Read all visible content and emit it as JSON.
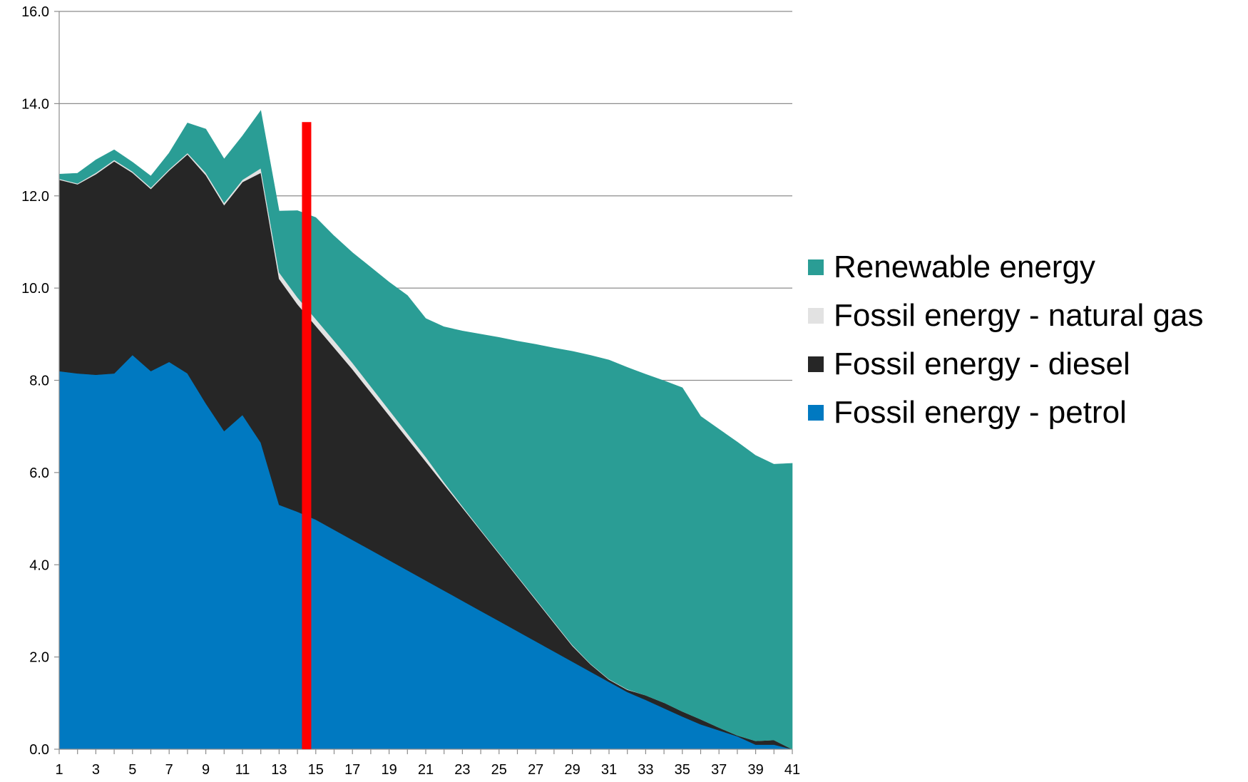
{
  "chart_data": {
    "type": "area",
    "stacked": true,
    "x": [
      1,
      2,
      3,
      4,
      5,
      6,
      7,
      8,
      9,
      10,
      11,
      12,
      13,
      14,
      15,
      16,
      17,
      18,
      19,
      20,
      21,
      22,
      23,
      24,
      25,
      26,
      27,
      28,
      29,
      30,
      31,
      32,
      33,
      34,
      35,
      36,
      37,
      38,
      39,
      40,
      41
    ],
    "x_tick_labels": [
      "1",
      "3",
      "5",
      "7",
      "9",
      "11",
      "13",
      "15",
      "17",
      "19",
      "21",
      "23",
      "25",
      "27",
      "29",
      "31",
      "33",
      "35",
      "37",
      "39",
      "41"
    ],
    "y_tick_labels": [
      "0.0",
      "2.0",
      "4.0",
      "6.0",
      "8.0",
      "10.0",
      "12.0",
      "14.0",
      "16.0"
    ],
    "ylim": [
      0,
      16
    ],
    "grid": "horizontal",
    "legend_position": "right",
    "series": [
      {
        "name": "Fossil energy  - petrol",
        "color": "#0079C1",
        "values": [
          8.2,
          8.15,
          8.12,
          8.15,
          8.55,
          8.2,
          8.4,
          8.15,
          7.5,
          6.9,
          7.25,
          6.65,
          5.3,
          5.15,
          4.98,
          4.76,
          4.54,
          4.32,
          4.1,
          3.88,
          3.66,
          3.44,
          3.22,
          3.0,
          2.78,
          2.56,
          2.34,
          2.12,
          1.9,
          1.68,
          1.46,
          1.24,
          1.07,
          0.89,
          0.71,
          0.54,
          0.41,
          0.28,
          0.1,
          0.1,
          0.0
        ]
      },
      {
        "name": "Fossil energy - diesel",
        "color": "#262626",
        "values": [
          4.15,
          4.1,
          4.35,
          4.6,
          3.95,
          3.95,
          4.15,
          4.75,
          4.95,
          4.9,
          5.05,
          5.85,
          4.9,
          4.5,
          4.2,
          3.95,
          3.7,
          3.42,
          3.14,
          2.86,
          2.58,
          2.3,
          2.02,
          1.74,
          1.46,
          1.18,
          0.9,
          0.62,
          0.34,
          0.16,
          0.05,
          0.05,
          0.1,
          0.12,
          0.11,
          0.11,
          0.06,
          0.02,
          0.08,
          0.1,
          0.0
        ]
      },
      {
        "name": "Fossil energy - natural gas",
        "color": "#E2E2E2",
        "values": [
          0.02,
          0.02,
          0.03,
          0.03,
          0.03,
          0.03,
          0.03,
          0.03,
          0.05,
          0.05,
          0.05,
          0.1,
          0.14,
          0.15,
          0.15,
          0.15,
          0.14,
          0.13,
          0.12,
          0.11,
          0.1,
          0.05,
          0.03,
          0.02,
          0.02,
          0.02,
          0.02,
          0.02,
          0.02,
          0.01,
          0.01,
          0.01,
          0.0,
          0.0,
          0.0,
          0.0,
          0.0,
          0.0,
          0.0,
          0.0,
          0.0
        ]
      },
      {
        "name": "Renewable energy",
        "color": "#2A9D95",
        "values": [
          0.1,
          0.22,
          0.28,
          0.22,
          0.2,
          0.25,
          0.35,
          0.65,
          0.95,
          0.95,
          0.95,
          1.25,
          1.33,
          1.88,
          2.2,
          2.27,
          2.39,
          2.58,
          2.77,
          2.99,
          3.0,
          3.37,
          3.8,
          4.24,
          4.67,
          5.09,
          5.52,
          5.94,
          6.37,
          6.69,
          6.92,
          6.98,
          6.96,
          6.98,
          7.02,
          6.57,
          6.47,
          6.36,
          6.19,
          5.98,
          6.2
        ]
      }
    ],
    "reference_line": {
      "x": 14.5,
      "y_top": 13.6,
      "color": "#FF0000"
    }
  }
}
